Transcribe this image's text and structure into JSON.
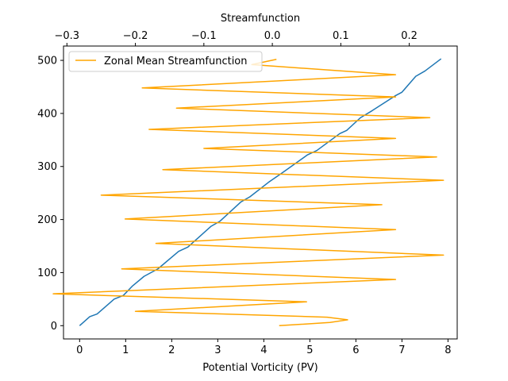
{
  "chart_data": {
    "type": "line",
    "xlabel_bottom": "Potential Vorticity (PV)",
    "xlabel_top": "Streamfunction",
    "bottom_xlim": [
      -0.35,
      8.2
    ],
    "top_xlim": [
      -0.305,
      0.27
    ],
    "ylim": [
      -25,
      527
    ],
    "bottom_xticks": [
      "0",
      "1",
      "2",
      "3",
      "4",
      "5",
      "6",
      "7",
      "8"
    ],
    "top_xticks": [
      "−0.3",
      "−0.2",
      "−0.1",
      "0.0",
      "0.1",
      "0.2"
    ],
    "yticks": [
      "0",
      "100",
      "200",
      "300",
      "400",
      "500"
    ],
    "legend_position": "upper left",
    "series": [
      {
        "axis": "bottom",
        "color": "#1f77b4",
        "points": [
          [
            0,
            0
          ],
          [
            0.22,
            17
          ],
          [
            0.38,
            22
          ],
          [
            0.75,
            50
          ],
          [
            0.95,
            57
          ],
          [
            1.15,
            75
          ],
          [
            1.4,
            93
          ],
          [
            1.7,
            107
          ],
          [
            2.15,
            140
          ],
          [
            2.35,
            148
          ],
          [
            2.85,
            187
          ],
          [
            3.05,
            197
          ],
          [
            3.5,
            233
          ],
          [
            3.7,
            243
          ],
          [
            4.1,
            270
          ],
          [
            4.4,
            288
          ],
          [
            4.95,
            322
          ],
          [
            5.15,
            330
          ],
          [
            5.65,
            362
          ],
          [
            5.8,
            368
          ],
          [
            6.1,
            392
          ],
          [
            6.35,
            405
          ],
          [
            6.85,
            433
          ],
          [
            7.0,
            440
          ],
          [
            7.3,
            470
          ],
          [
            7.5,
            480
          ],
          [
            7.85,
            503
          ]
        ]
      },
      {
        "name": "Zonal Mean Streamfunction",
        "axis": "top",
        "color": "#ffa500",
        "points": [
          [
            0.01,
            0
          ],
          [
            0.084,
            6
          ],
          [
            0.11,
            11
          ],
          [
            0.08,
            16
          ],
          [
            -0.2,
            27
          ],
          [
            0.05,
            45
          ],
          [
            -0.32,
            60
          ],
          [
            0.18,
            87
          ],
          [
            -0.22,
            107
          ],
          [
            0.25,
            133
          ],
          [
            -0.17,
            155
          ],
          [
            0.18,
            181
          ],
          [
            -0.215,
            201
          ],
          [
            0.16,
            228
          ],
          [
            -0.25,
            246
          ],
          [
            0.25,
            274
          ],
          [
            -0.16,
            294
          ],
          [
            0.24,
            318
          ],
          [
            -0.1,
            334
          ],
          [
            0.18,
            353
          ],
          [
            -0.18,
            370
          ],
          [
            0.23,
            392
          ],
          [
            -0.14,
            410
          ],
          [
            0.18,
            431
          ],
          [
            -0.19,
            448
          ],
          [
            0.18,
            473
          ],
          [
            -0.03,
            492
          ],
          [
            0.006,
            502
          ]
        ]
      }
    ]
  }
}
